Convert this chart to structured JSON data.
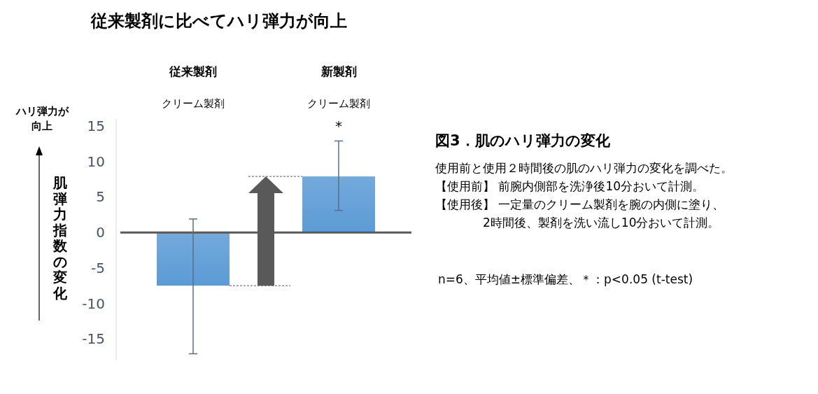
{
  "chart_data": {
    "type": "bar",
    "title": "従来製剤に比べてハリ弾力が向上",
    "subtitle": "図3．肌のハリ弾力の変化",
    "ylabel": "肌弾力指数の変化",
    "categories": [
      "従来製剤",
      "新製剤"
    ],
    "values": [
      -7.5,
      7.9
    ],
    "errors": [
      [
        -17.1,
        1.9
      ],
      [
        3.1,
        12.9
      ]
    ],
    "color": "#5b9bd5",
    "ylim": [
      -18,
      16
    ],
    "yticks": [
      -15,
      -10,
      -5,
      0,
      5,
      10,
      15
    ],
    "annotations": [
      {
        "text": "*",
        "x": "新製剤",
        "y": 12.9
      },
      "クリーム製剤",
      "クリーム製剤",
      "ハリ弾力が",
      "向上",
      "使用前と使用２時間後の肌のハリ弾力の変化を調べた。",
      "【使用前】 前腕内側部を洗浄後10分おいて計測。",
      "【使用後】 一定量のクリーム製剤を腕の内側に塗り、",
      "2時間後、製剤を洗い流し10分おいて計測。",
      "n=6、平均値±標準偏差、＊：p<0.05 (t-test)"
    ]
  }
}
